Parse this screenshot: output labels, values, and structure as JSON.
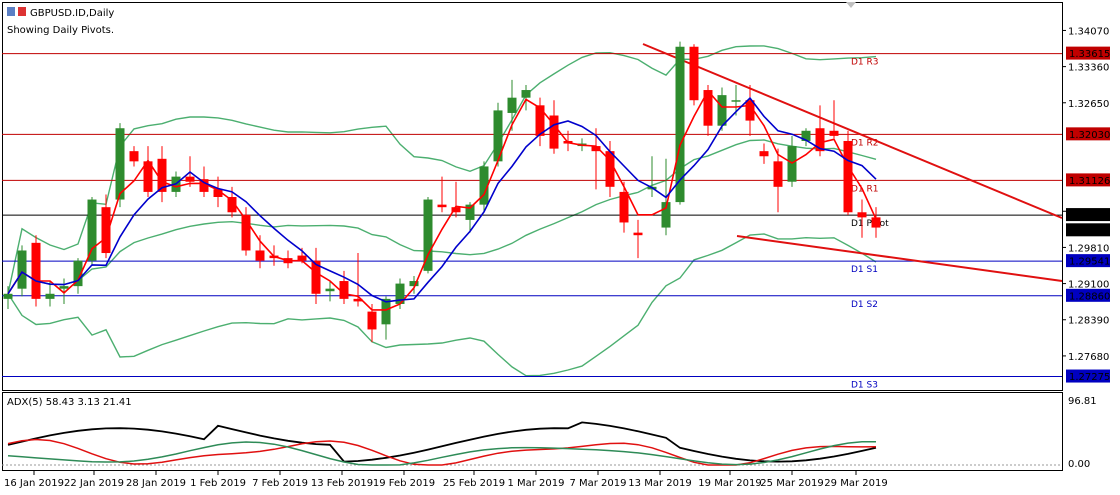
{
  "header": {
    "symbol": "GBPUSD.ID,Daily",
    "note": "Showing Daily Pivots."
  },
  "chart_data": [
    {
      "type": "candlestick",
      "symbol": "GBPUSD.ID,Daily",
      "ylim": [
        1.2705,
        1.3455
      ],
      "y_ticks": [
        "1.34070",
        "1.33360",
        "1.32650",
        "1.30520",
        "1.29810",
        "1.29100",
        "1.28390",
        "1.27680"
      ],
      "x_ticks": [
        "16 Jan 2019",
        "22 Jan 2019",
        "28 Jan 2019",
        "1 Feb 2019",
        "7 Feb 2019",
        "13 Feb 2019",
        "19 Feb 2019",
        "25 Feb 2019",
        "1 Mar 2019",
        "7 Mar 2019",
        "13 Mar 2019",
        "19 Mar 2019",
        "25 Mar 2019",
        "29 Mar 2019"
      ],
      "candles": [
        [
          1.288,
          1.2905,
          1.286,
          1.289
        ],
        [
          1.29,
          1.2985,
          1.2885,
          1.2975
        ],
        [
          1.299,
          1.3005,
          1.2865,
          1.288
        ],
        [
          1.288,
          1.2915,
          1.2865,
          1.289
        ],
        [
          1.29,
          1.292,
          1.287,
          1.2905
        ],
        [
          1.2905,
          1.296,
          1.289,
          1.2955
        ],
        [
          1.2955,
          1.308,
          1.2945,
          1.3075
        ],
        [
          1.306,
          1.3085,
          1.296,
          1.297
        ],
        [
          1.3075,
          1.3225,
          1.306,
          1.3215
        ],
        [
          1.317,
          1.318,
          1.314,
          1.315
        ],
        [
          1.315,
          1.318,
          1.308,
          1.309
        ],
        [
          1.3155,
          1.318,
          1.307,
          1.309
        ],
        [
          1.309,
          1.313,
          1.308,
          1.312
        ],
        [
          1.312,
          1.316,
          1.31,
          1.311
        ],
        [
          1.3115,
          1.314,
          1.308,
          1.309
        ],
        [
          1.3095,
          1.312,
          1.306,
          1.308
        ],
        [
          1.308,
          1.31,
          1.304,
          1.305
        ],
        [
          1.3045,
          1.306,
          1.2965,
          1.2975
        ],
        [
          1.2975,
          1.3005,
          1.294,
          1.2955
        ],
        [
          1.2965,
          1.2985,
          1.2945,
          1.296
        ],
        [
          1.296,
          1.2975,
          1.294,
          1.295
        ],
        [
          1.2965,
          1.298,
          1.295,
          1.2955
        ],
        [
          1.2955,
          1.298,
          1.287,
          1.289
        ],
        [
          1.2895,
          1.2915,
          1.2875,
          1.29
        ],
        [
          1.2915,
          1.2935,
          1.287,
          1.288
        ],
        [
          1.288,
          1.297,
          1.2865,
          1.2875
        ],
        [
          1.2855,
          1.287,
          1.2795,
          1.282
        ],
        [
          1.283,
          1.2885,
          1.28,
          1.288
        ],
        [
          1.287,
          1.292,
          1.286,
          1.291
        ],
        [
          1.2905,
          1.2925,
          1.289,
          1.2915
        ],
        [
          1.2935,
          1.308,
          1.293,
          1.3075
        ],
        [
          1.3065,
          1.312,
          1.305,
          1.306
        ],
        [
          1.306,
          1.311,
          1.304,
          1.305
        ],
        [
          1.3035,
          1.307,
          1.301,
          1.3065
        ],
        [
          1.3065,
          1.315,
          1.305,
          1.314
        ],
        [
          1.315,
          1.3265,
          1.314,
          1.325
        ],
        [
          1.3245,
          1.331,
          1.321,
          1.3275
        ],
        [
          1.3275,
          1.33,
          1.325,
          1.329
        ],
        [
          1.326,
          1.3275,
          1.318,
          1.32
        ],
        [
          1.324,
          1.327,
          1.3165,
          1.3175
        ],
        [
          1.319,
          1.321,
          1.317,
          1.3185
        ],
        [
          1.318,
          1.3195,
          1.317,
          1.3185
        ],
        [
          1.318,
          1.3215,
          1.3095,
          1.317
        ],
        [
          1.317,
          1.319,
          1.308,
          1.31
        ],
        [
          1.309,
          1.311,
          1.301,
          1.303
        ],
        [
          1.301,
          1.3035,
          1.296,
          1.3005
        ],
        [
          1.3095,
          1.316,
          1.308,
          1.31
        ],
        [
          1.302,
          1.3155,
          1.3005,
          1.307
        ],
        [
          1.307,
          1.3385,
          1.3065,
          1.3375
        ],
        [
          1.3375,
          1.338,
          1.326,
          1.327
        ],
        [
          1.329,
          1.33,
          1.32,
          1.322
        ],
        [
          1.322,
          1.3295,
          1.321,
          1.328
        ],
        [
          1.327,
          1.33,
          1.324,
          1.327
        ],
        [
          1.327,
          1.33,
          1.32,
          1.323
        ],
        [
          1.317,
          1.3185,
          1.3145,
          1.316
        ],
        [
          1.315,
          1.3175,
          1.305,
          1.31
        ],
        [
          1.311,
          1.32,
          1.31,
          1.318
        ],
        [
          1.319,
          1.3215,
          1.318,
          1.321
        ],
        [
          1.3215,
          1.326,
          1.316,
          1.317
        ],
        [
          1.321,
          1.327,
          1.3195,
          1.32
        ],
        [
          1.319,
          1.321,
          1.3045,
          1.305
        ],
        [
          1.305,
          1.3075,
          1.3,
          1.304
        ],
        [
          1.304,
          1.306,
          1.3,
          1.302
        ]
      ],
      "pivots": [
        {
          "name": "D1 R3",
          "value": 1.33615,
          "color": "#c00000"
        },
        {
          "name": "D1 R2",
          "value": 1.3203,
          "color": "#c00000"
        },
        {
          "name": "D1 R1",
          "value": 1.31126,
          "color": "#c00000"
        },
        {
          "name": "D1 Pivot",
          "value": 1.30445,
          "color": "#000000"
        },
        {
          "name": "D1 S1",
          "value": 1.29541,
          "color": "#0000c0"
        },
        {
          "name": "D1 S2",
          "value": 1.2886,
          "color": "#0000c0"
        },
        {
          "name": "D1 S3",
          "value": 1.27275,
          "color": "#0000c0"
        }
      ],
      "price_labels": [
        {
          "text": "1.33615",
          "color": "#c00000"
        },
        {
          "text": "1.32030",
          "color": "#c00000"
        },
        {
          "text": "1.31126",
          "color": "#c00000"
        },
        {
          "text": "1.30445",
          "color": "#000000"
        },
        {
          "text": "1.30146",
          "color": "#000000"
        },
        {
          "text": "1.29541",
          "color": "#0000c0"
        },
        {
          "text": "1.28860",
          "color": "#0000c0"
        },
        {
          "text": "1.27275",
          "color": "#0000c0"
        }
      ],
      "colors": {
        "bull": "#2e8b2e",
        "bear": "#ff0000",
        "band": "#4caf70",
        "fast_ma": "#ff0000",
        "slow_ma": "#0000cc",
        "trend": "#e01010"
      }
    },
    {
      "type": "line",
      "title": "ADX(5) 58.43 3.13 21.41",
      "y_ticks": [
        "96.81",
        "0.00"
      ],
      "series": [
        {
          "color": "#000000"
        },
        {
          "color": "#e01010"
        },
        {
          "color": "#2e8b57"
        }
      ]
    }
  ]
}
